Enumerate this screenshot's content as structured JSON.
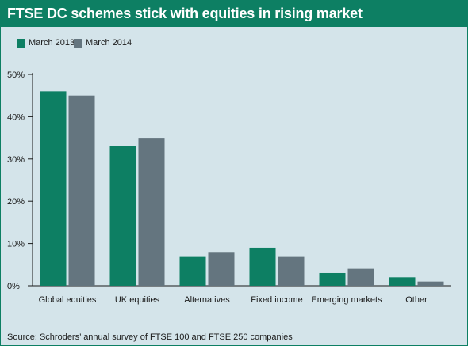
{
  "chart_data": {
    "type": "bar",
    "title": "FTSE DC schemes stick with equities in rising market",
    "categories": [
      "Global equities",
      "UK equities",
      "Alternatives",
      "Fixed income",
      "Emerging markets",
      "Other"
    ],
    "series": [
      {
        "name": "March 2013",
        "values": [
          46,
          33,
          7,
          9,
          3,
          2
        ],
        "color": "#0d7f63"
      },
      {
        "name": "March 2014",
        "values": [
          45,
          35,
          8,
          7,
          4,
          1
        ],
        "color": "#64757f"
      }
    ],
    "yticks": [
      "0%",
      "10%",
      "20%",
      "30%",
      "40%",
      "50%"
    ],
    "ylim": [
      0,
      50
    ],
    "grid": false,
    "legend_placement": "top-left",
    "xlabel": "",
    "ylabel": "",
    "source": "Source: Schroders’ annual survey of FTSE 100 and FTSE 250 companies"
  }
}
